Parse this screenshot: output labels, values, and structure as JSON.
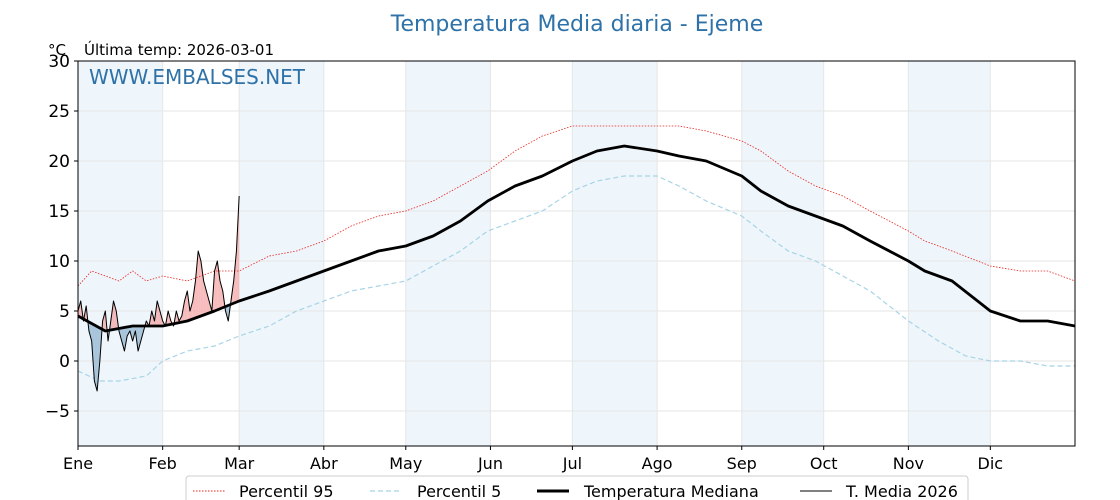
{
  "chart_data": {
    "type": "line",
    "title": "Temperatura Media diaria - Ejeme",
    "unit_label": "°C",
    "last_temp_label": "Última temp: 2026-03-01",
    "watermark": "WWW.EMBALSES.NET",
    "ylim": [
      -8.5,
      30
    ],
    "yticks": [
      -5,
      0,
      5,
      10,
      15,
      20,
      25,
      30
    ],
    "ytick_labels": [
      "−5",
      "0",
      "5",
      "10",
      "15",
      "20",
      "25",
      "30"
    ],
    "x_domain_days": [
      0,
      365
    ],
    "months": [
      "Ene",
      "Feb",
      "Mar",
      "Abr",
      "May",
      "Jun",
      "Jul",
      "Ago",
      "Sep",
      "Oct",
      "Nov",
      "Dic"
    ],
    "month_start_days": [
      0,
      31,
      59,
      90,
      120,
      151,
      181,
      212,
      243,
      273,
      304,
      334
    ],
    "grid": true,
    "shaded_months": [
      "Ene",
      "Mar",
      "May",
      "Jul",
      "Sep",
      "Nov"
    ],
    "legend_position": "bottom-center",
    "series": [
      {
        "name": "Percentil 95",
        "color": "#e8231c",
        "style": "dotted",
        "points": [
          [
            0,
            7.5
          ],
          [
            5,
            9
          ],
          [
            10,
            8.5
          ],
          [
            15,
            8
          ],
          [
            20,
            9
          ],
          [
            25,
            8
          ],
          [
            31,
            8.5
          ],
          [
            40,
            8
          ],
          [
            50,
            9
          ],
          [
            59,
            9
          ],
          [
            70,
            10.5
          ],
          [
            80,
            11
          ],
          [
            90,
            12
          ],
          [
            100,
            13.5
          ],
          [
            110,
            14.5
          ],
          [
            120,
            15
          ],
          [
            130,
            16
          ],
          [
            140,
            17.5
          ],
          [
            150,
            19
          ],
          [
            160,
            21
          ],
          [
            170,
            22.5
          ],
          [
            181,
            23.5
          ],
          [
            190,
            23.5
          ],
          [
            200,
            23.5
          ],
          [
            212,
            23.5
          ],
          [
            220,
            23.5
          ],
          [
            230,
            23
          ],
          [
            243,
            22
          ],
          [
            250,
            21
          ],
          [
            260,
            19
          ],
          [
            270,
            17.5
          ],
          [
            280,
            16.5
          ],
          [
            290,
            15
          ],
          [
            304,
            13
          ],
          [
            310,
            12
          ],
          [
            320,
            11
          ],
          [
            334,
            9.5
          ],
          [
            345,
            9
          ],
          [
            355,
            9
          ],
          [
            365,
            8
          ]
        ]
      },
      {
        "name": "Percentil 5",
        "color": "#a8d4e6",
        "style": "dashed",
        "points": [
          [
            0,
            -1
          ],
          [
            8,
            -2
          ],
          [
            15,
            -2
          ],
          [
            25,
            -1.5
          ],
          [
            31,
            0
          ],
          [
            40,
            1
          ],
          [
            50,
            1.5
          ],
          [
            59,
            2.5
          ],
          [
            70,
            3.5
          ],
          [
            80,
            5
          ],
          [
            90,
            6
          ],
          [
            100,
            7
          ],
          [
            110,
            7.5
          ],
          [
            120,
            8
          ],
          [
            130,
            9.5
          ],
          [
            140,
            11
          ],
          [
            150,
            13
          ],
          [
            160,
            14
          ],
          [
            170,
            15
          ],
          [
            181,
            17
          ],
          [
            190,
            18
          ],
          [
            200,
            18.5
          ],
          [
            212,
            18.5
          ],
          [
            220,
            17.5
          ],
          [
            230,
            16
          ],
          [
            243,
            14.5
          ],
          [
            250,
            13
          ],
          [
            260,
            11
          ],
          [
            270,
            10
          ],
          [
            280,
            8.5
          ],
          [
            290,
            7
          ],
          [
            304,
            4
          ],
          [
            315,
            2
          ],
          [
            325,
            0.5
          ],
          [
            334,
            0
          ],
          [
            345,
            0
          ],
          [
            355,
            -0.5
          ],
          [
            365,
            -0.5
          ]
        ]
      },
      {
        "name": "Temperatura Mediana",
        "color": "#000000",
        "style": "solid-thick",
        "points": [
          [
            0,
            4.5
          ],
          [
            10,
            3
          ],
          [
            20,
            3.5
          ],
          [
            31,
            3.5
          ],
          [
            40,
            4
          ],
          [
            50,
            5
          ],
          [
            59,
            6
          ],
          [
            70,
            7
          ],
          [
            80,
            8
          ],
          [
            90,
            9
          ],
          [
            100,
            10
          ],
          [
            110,
            11
          ],
          [
            120,
            11.5
          ],
          [
            130,
            12.5
          ],
          [
            140,
            14
          ],
          [
            150,
            16
          ],
          [
            160,
            17.5
          ],
          [
            170,
            18.5
          ],
          [
            181,
            20
          ],
          [
            190,
            21
          ],
          [
            200,
            21.5
          ],
          [
            212,
            21
          ],
          [
            220,
            20.5
          ],
          [
            230,
            20
          ],
          [
            243,
            18.5
          ],
          [
            250,
            17
          ],
          [
            260,
            15.5
          ],
          [
            270,
            14.5
          ],
          [
            280,
            13.5
          ],
          [
            290,
            12
          ],
          [
            304,
            10
          ],
          [
            310,
            9
          ],
          [
            320,
            8
          ],
          [
            334,
            5
          ],
          [
            345,
            4
          ],
          [
            355,
            4
          ],
          [
            365,
            3.5
          ]
        ]
      },
      {
        "name": "T. Media 2026",
        "color": "#000000",
        "style": "solid-thin",
        "points": [
          [
            0,
            5
          ],
          [
            1,
            6
          ],
          [
            2,
            4
          ],
          [
            3,
            5.5
          ],
          [
            4,
            3
          ],
          [
            5,
            2
          ],
          [
            6,
            -2
          ],
          [
            7,
            -3
          ],
          [
            8,
            0
          ],
          [
            9,
            4
          ],
          [
            10,
            5
          ],
          [
            11,
            2
          ],
          [
            12,
            4
          ],
          [
            13,
            6
          ],
          [
            14,
            5
          ],
          [
            15,
            3
          ],
          [
            16,
            2
          ],
          [
            17,
            1
          ],
          [
            18,
            2.5
          ],
          [
            19,
            3
          ],
          [
            20,
            2
          ],
          [
            21,
            3
          ],
          [
            22,
            1
          ],
          [
            23,
            2
          ],
          [
            24,
            3
          ],
          [
            25,
            4
          ],
          [
            26,
            3.5
          ],
          [
            27,
            5
          ],
          [
            28,
            4
          ],
          [
            29,
            6
          ],
          [
            30,
            5
          ],
          [
            31,
            4
          ],
          [
            32,
            3.5
          ],
          [
            33,
            5
          ],
          [
            34,
            4
          ],
          [
            35,
            3.5
          ],
          [
            36,
            5
          ],
          [
            37,
            4
          ],
          [
            38,
            4.5
          ],
          [
            39,
            6
          ],
          [
            40,
            7
          ],
          [
            41,
            5
          ],
          [
            42,
            6
          ],
          [
            43,
            8
          ],
          [
            44,
            11
          ],
          [
            45,
            10
          ],
          [
            46,
            8
          ],
          [
            47,
            7
          ],
          [
            48,
            6
          ],
          [
            49,
            5
          ],
          [
            50,
            9
          ],
          [
            51,
            10
          ],
          [
            52,
            8
          ],
          [
            53,
            7
          ],
          [
            54,
            5
          ],
          [
            55,
            4
          ],
          [
            56,
            6
          ],
          [
            57,
            8
          ],
          [
            58,
            11
          ],
          [
            59,
            16.5
          ]
        ]
      }
    ]
  },
  "legend": {
    "items": [
      {
        "label": "Percentil 95"
      },
      {
        "label": "Percentil 5"
      },
      {
        "label": "Temperatura Mediana"
      },
      {
        "label": "T. Media 2026"
      }
    ]
  }
}
